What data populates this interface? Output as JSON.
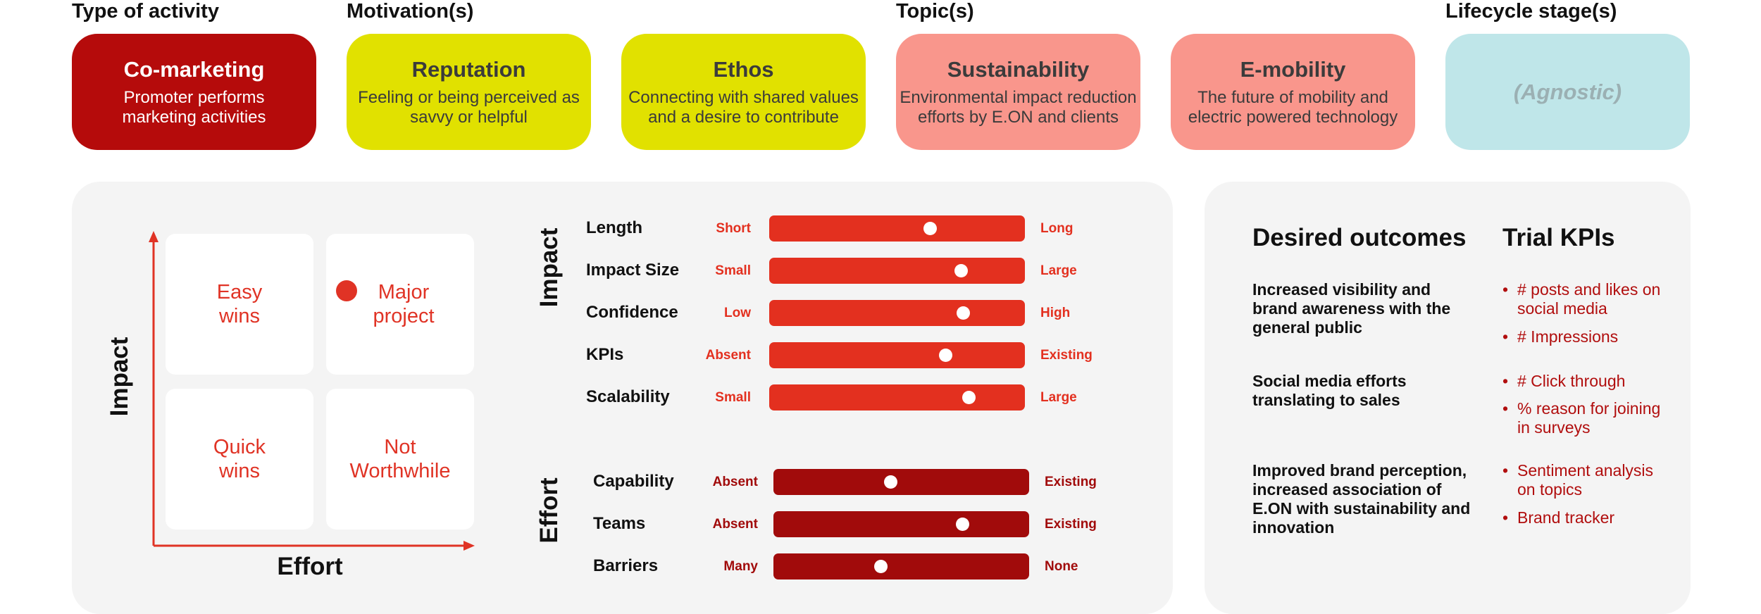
{
  "headers": {
    "activity": "Type of activity",
    "motivation": "Motivation(s)",
    "topic": "Topic(s)",
    "lifecycle": "Lifecycle stage(s)"
  },
  "cards": [
    {
      "title": "Co-marketing",
      "desc": "Promoter performs marketing activities",
      "bg": "#b50b0b",
      "fg": "#ffffff"
    },
    {
      "title": "Reputation",
      "desc": "Feeling or being perceived as savvy or helpful",
      "bg": "#e1e100",
      "fg": "#3b3b3b"
    },
    {
      "title": "Ethos",
      "desc": "Connecting with shared values and a desire to contribute",
      "bg": "#e1e100",
      "fg": "#3b3b3b"
    },
    {
      "title": "Sustainability",
      "desc": "Environmental impact reduction efforts by E.ON and clients",
      "bg": "#f9968c",
      "fg": "#3b3b3b"
    },
    {
      "title": "E-mobility",
      "desc": "The future of mobility and electric powered technology",
      "bg": "#f9968c",
      "fg": "#3b3b3b"
    },
    {
      "title": "(Agnostic)",
      "desc": "",
      "bg": "#bfe6e9",
      "fg": "#9bb0b3"
    }
  ],
  "matrix": {
    "y_axis": "Impact",
    "x_axis": "Effort",
    "quadrants": {
      "easy_wins": "Easy wins",
      "major_project": "Major project",
      "quick_wins": "Quick wins",
      "not_worthwhile": "Not Worthwhile"
    },
    "selected": "Major project",
    "accent": "#e03325"
  },
  "impact": {
    "label": "Impact",
    "color": "#e3301f",
    "rows": [
      {
        "label": "Length",
        "min": "Short",
        "max": "Long",
        "level": 0.63
      },
      {
        "label": "Impact Size",
        "min": "Small",
        "max": "Large",
        "level": 0.75
      },
      {
        "label": "Confidence",
        "min": "Low",
        "max": "High",
        "level": 0.76
      },
      {
        "label": "KPIs",
        "min": "Absent",
        "max": "Existing",
        "level": 0.69
      },
      {
        "label": "Scalability",
        "min": "Small",
        "max": "Large",
        "level": 0.78
      }
    ]
  },
  "effort": {
    "label": "Effort",
    "color": "#a10b0b",
    "rows": [
      {
        "label": "Capability",
        "min": "Absent",
        "max": "Existing",
        "level": 0.46
      },
      {
        "label": "Teams",
        "min": "Absent",
        "max": "Existing",
        "level": 0.74
      },
      {
        "label": "Barriers",
        "min": "Many",
        "max": "None",
        "level": 0.42
      }
    ]
  },
  "outcomes": {
    "heading": "Desired outcomes",
    "kpi_heading": "Trial KPIs",
    "items": [
      {
        "outcome": "Increased visibility and brand awareness with the general public",
        "kpis": [
          "# posts and likes on social media",
          "# Impressions"
        ]
      },
      {
        "outcome": "Social media efforts translating to sales",
        "kpis": [
          "# Click through",
          "% reason for joining in surveys"
        ]
      },
      {
        "outcome": "Improved brand perception, increased association of E.ON with sustainability and innovation",
        "kpis": [
          "Sentiment analysis on topics",
          "Brand tracker"
        ]
      }
    ]
  }
}
